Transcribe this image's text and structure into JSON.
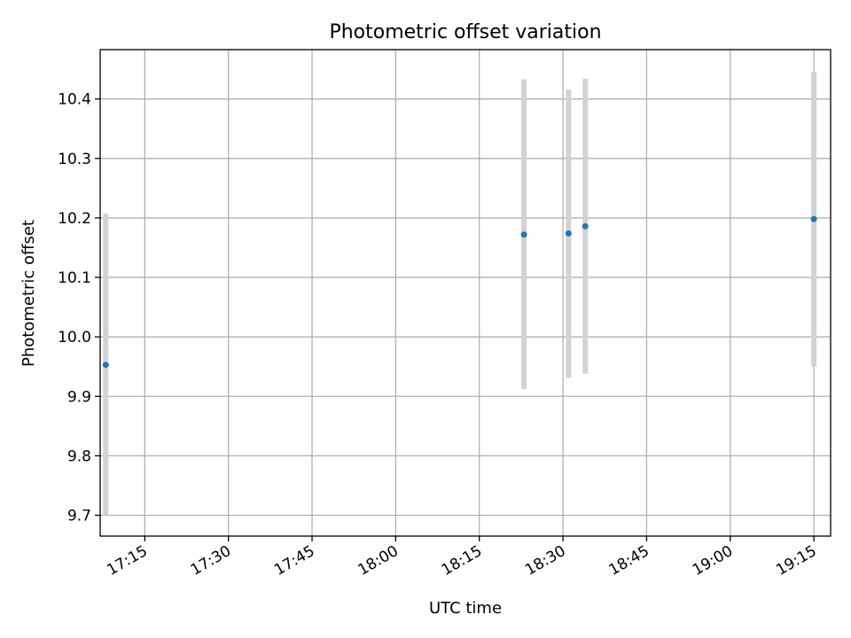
{
  "chart_data": {
    "type": "scatter",
    "title": "Photometric offset variation",
    "xlabel": "UTC time",
    "ylabel": "Photometric offset",
    "x_ticks": [
      "17:15",
      "17:30",
      "17:45",
      "18:00",
      "18:15",
      "18:30",
      "18:45",
      "19:00",
      "19:15"
    ],
    "x_tick_minutes": [
      1035,
      1050,
      1065,
      1080,
      1095,
      1110,
      1125,
      1140,
      1155
    ],
    "xlim": [
      "17:07",
      "19:18"
    ],
    "y_ticks": [
      9.7,
      9.8,
      9.9,
      10.0,
      10.1,
      10.2,
      10.3,
      10.4
    ],
    "ylim": [
      9.665,
      10.483
    ],
    "grid": true,
    "legend": "none",
    "marker_color": "#1f77b4",
    "errorbar_color": "#d3d3d3",
    "points": [
      {
        "time": "17:08",
        "y": 9.953,
        "err_low": 9.7,
        "err_high": 10.207
      },
      {
        "time": "18:23",
        "y": 10.172,
        "err_low": 9.912,
        "err_high": 10.433
      },
      {
        "time": "18:31",
        "y": 10.174,
        "err_low": 9.931,
        "err_high": 10.416
      },
      {
        "time": "18:34",
        "y": 10.186,
        "err_low": 9.938,
        "err_high": 10.434
      },
      {
        "time": "19:15",
        "y": 10.198,
        "err_low": 9.95,
        "err_high": 10.446
      }
    ]
  }
}
